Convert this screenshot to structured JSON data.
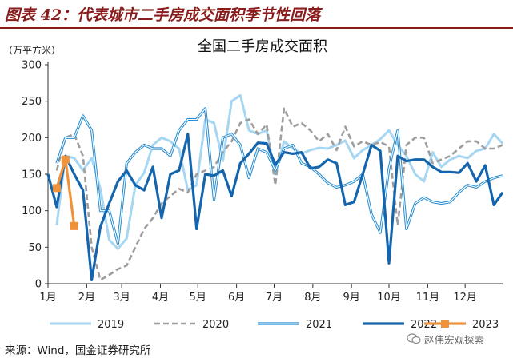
{
  "figure": {
    "title": "图表 42：代表城市二手房成交面积季节性回落",
    "source": "来源：Wind，国金证券研究所",
    "watermark": "赵伟宏观探索"
  },
  "chart_data": {
    "type": "line",
    "title": "全国二手房成交面积",
    "ylabel": "（万平方米）",
    "xlabel": "",
    "ylim": [
      0,
      300
    ],
    "yticks": [
      0,
      50,
      100,
      150,
      200,
      250,
      300
    ],
    "xlim": [
      0,
      52
    ],
    "month_ticks": [
      "1月",
      "2月",
      "3月",
      "4月",
      "5月",
      "6月",
      "7月",
      "8月",
      "9月",
      "10月",
      "11月",
      "12月"
    ],
    "month_positions": [
      0,
      4.43,
      8.43,
      12.86,
      17.14,
      21.57,
      25.86,
      30.29,
      34.71,
      39.0,
      43.43,
      47.71
    ],
    "series": [
      {
        "name": "2019",
        "color": "#a6d6f2",
        "dash": "",
        "width": 3,
        "marker": false,
        "x": [
          1,
          2,
          3,
          4,
          5,
          6,
          7,
          8,
          9,
          10,
          11,
          12,
          13,
          14,
          15,
          16,
          17,
          18,
          19,
          20,
          21,
          22,
          23,
          24,
          25,
          26,
          27,
          28,
          29,
          30,
          31,
          32,
          33,
          34,
          35,
          36,
          37,
          38,
          39,
          40,
          41,
          42,
          43,
          44,
          45,
          46,
          47,
          48,
          49,
          50,
          51,
          52
        ],
        "values": [
          80,
          175,
          172,
          155,
          172,
          130,
          60,
          48,
          62,
          135,
          152,
          190,
          200,
          195,
          185,
          128,
          135,
          225,
          220,
          168,
          250,
          258,
          210,
          205,
          210,
          150,
          195,
          185,
          178,
          183,
          186,
          185,
          190,
          196,
          172,
          183,
          190,
          198,
          210,
          190,
          175,
          150,
          140,
          180,
          160,
          170,
          175,
          172,
          182,
          185,
          205,
          192
        ]
      },
      {
        "name": "2020",
        "color": "#9e9e9e",
        "dash": "7,4",
        "width": 2.6,
        "marker": false,
        "x": [
          1,
          2,
          3,
          4,
          5,
          6,
          7,
          8,
          9,
          10,
          11,
          12,
          13,
          14,
          15,
          16,
          17,
          18,
          19,
          20,
          21,
          22,
          23,
          24,
          25,
          26,
          27,
          28,
          29,
          30,
          31,
          32,
          33,
          34,
          35,
          36,
          37,
          38,
          39,
          40,
          41,
          42,
          43,
          44,
          45,
          46,
          47,
          48,
          49,
          50,
          51,
          52
        ],
        "values": [
          155,
          200,
          205,
          175,
          50,
          5,
          12,
          20,
          25,
          50,
          75,
          90,
          110,
          120,
          130,
          125,
          150,
          155,
          160,
          180,
          195,
          220,
          225,
          205,
          218,
          135,
          240,
          215,
          220,
          210,
          195,
          205,
          183,
          215,
          188,
          195,
          190,
          194,
          188,
          80,
          190,
          200,
          200,
          165,
          170,
          175,
          185,
          195,
          195,
          185,
          185,
          190
        ]
      },
      {
        "name": "2021",
        "color": "#2a8fd0",
        "dash": "",
        "width": 3.2,
        "marker": false,
        "double": true,
        "x": [
          1,
          2,
          3,
          4,
          5,
          6,
          7,
          8,
          9,
          10,
          11,
          12,
          13,
          14,
          15,
          16,
          17,
          18,
          19,
          20,
          21,
          22,
          23,
          24,
          25,
          26,
          27,
          28,
          29,
          30,
          31,
          32,
          33,
          34,
          35,
          36,
          37,
          38,
          39,
          40,
          41,
          42,
          43,
          44,
          45,
          46,
          47,
          48,
          49,
          50,
          51,
          52
        ],
        "values": [
          165,
          200,
          200,
          230,
          210,
          100,
          100,
          55,
          165,
          180,
          190,
          185,
          185,
          175,
          210,
          225,
          225,
          240,
          115,
          200,
          205,
          190,
          145,
          185,
          180,
          155,
          185,
          190,
          165,
          160,
          150,
          138,
          132,
          135,
          140,
          150,
          95,
          70,
          158,
          210,
          75,
          110,
          118,
          112,
          110,
          112,
          125,
          135,
          132,
          140,
          145,
          148
        ]
      },
      {
        "name": "2022",
        "color": "#1465ad",
        "dash": "",
        "width": 3.2,
        "marker": false,
        "x": [
          0,
          1,
          2,
          3,
          4,
          5,
          6,
          7,
          8,
          9,
          10,
          11,
          12,
          13,
          14,
          15,
          16,
          17,
          18,
          19,
          20,
          21,
          22,
          23,
          24,
          25,
          26,
          27,
          28,
          29,
          30,
          31,
          32,
          33,
          34,
          35,
          36,
          37,
          38,
          39,
          40,
          41,
          42,
          43,
          44,
          45,
          46,
          47,
          48,
          49,
          50,
          51,
          52
        ],
        "values": [
          150,
          105,
          175,
          150,
          128,
          5,
          78,
          110,
          140,
          155,
          135,
          128,
          160,
          90,
          150,
          155,
          205,
          75,
          150,
          148,
          155,
          120,
          165,
          178,
          193,
          192,
          163,
          180,
          178,
          180,
          158,
          160,
          170,
          165,
          108,
          112,
          150,
          190,
          182,
          28,
          175,
          168,
          170,
          170,
          160,
          153,
          153,
          152,
          165,
          140,
          162,
          108,
          125
        ]
      },
      {
        "name": "2023",
        "color": "#f0923a",
        "dash": "",
        "width": 3.2,
        "marker": true,
        "x": [
          1,
          2,
          3
        ],
        "values": [
          131,
          170,
          79
        ]
      }
    ]
  }
}
